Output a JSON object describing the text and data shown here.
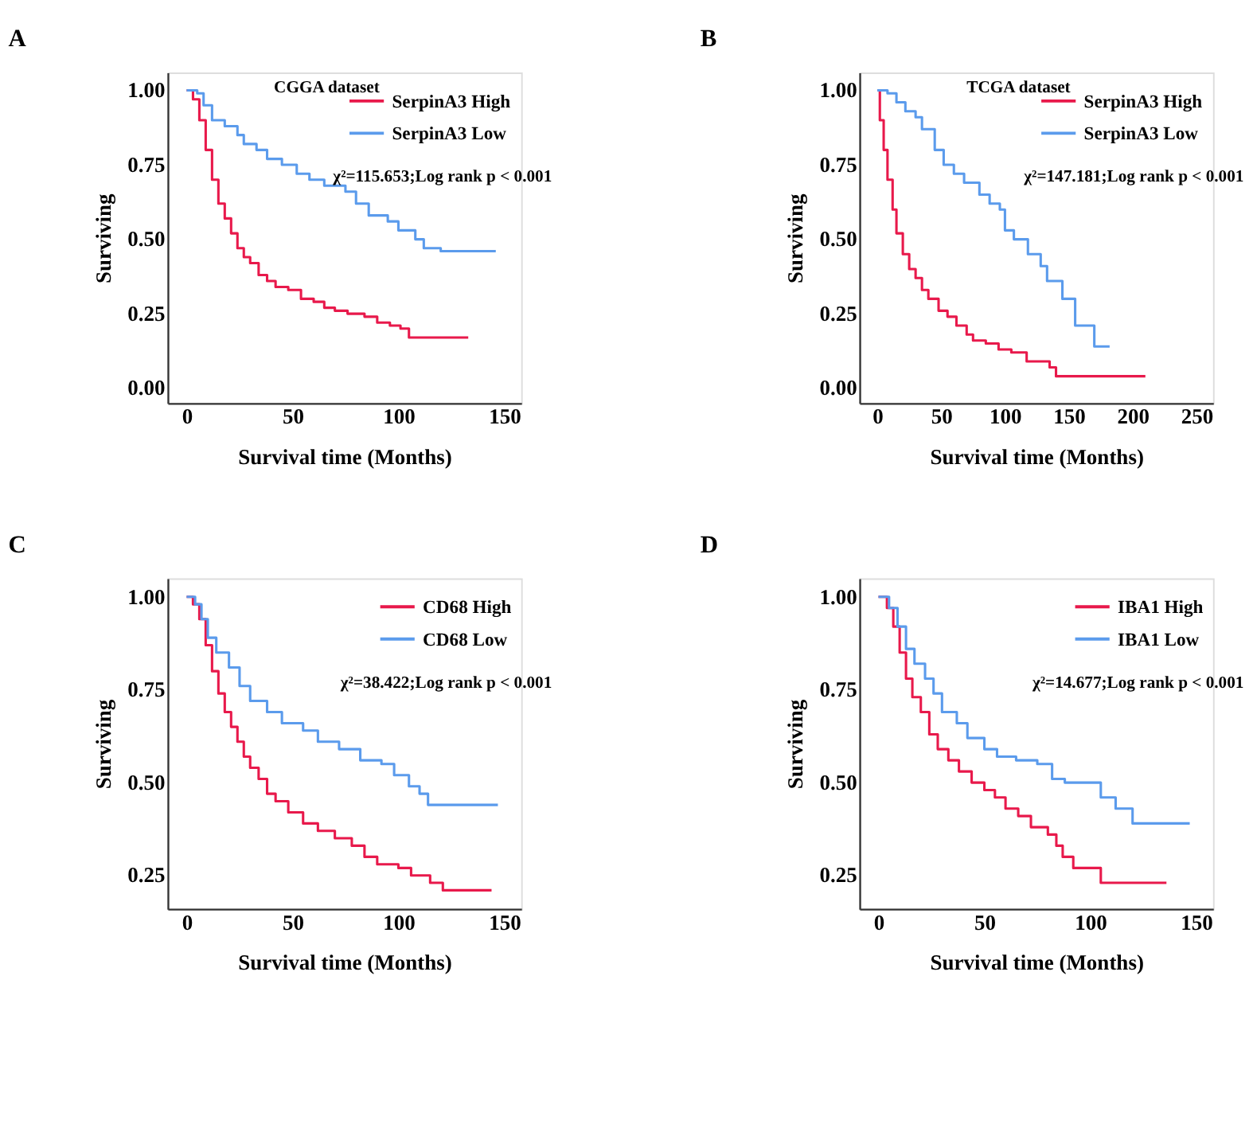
{
  "chart_data": [
    {
      "type": "step",
      "title": "A",
      "subtitle": "CGGA dataset",
      "xlabel": "Survival time (Months)",
      "ylabel": "Surviving",
      "annotations": [
        "χ²=115.653;Log rank p < 0.001"
      ],
      "legend": "top right",
      "xlim": [
        -9,
        158
      ],
      "ylim": [
        -0.05,
        1.06
      ],
      "xticks": [
        0,
        50,
        100,
        150
      ],
      "yticks": [
        {
          "value": 0,
          "label": "0.00"
        },
        {
          "value": 0.25,
          "label": "0.25"
        },
        {
          "value": 0.5,
          "label": "0.50"
        },
        {
          "value": 0.75,
          "label": "0.75"
        },
        {
          "value": 1,
          "label": "1.00"
        }
      ],
      "series": [
        {
          "name": "SerpinA3 High",
          "color": "#e8194b",
          "x": [
            0,
            3,
            6,
            9,
            12,
            15,
            18,
            21,
            24,
            27,
            30,
            34,
            38,
            42,
            48,
            54,
            60,
            65,
            70,
            76,
            84,
            90,
            96,
            101,
            105,
            133
          ],
          "values": [
            1.0,
            0.97,
            0.9,
            0.8,
            0.7,
            0.62,
            0.57,
            0.52,
            0.47,
            0.44,
            0.42,
            0.38,
            0.36,
            0.34,
            0.33,
            0.3,
            0.29,
            0.27,
            0.26,
            0.25,
            0.24,
            0.22,
            0.21,
            0.2,
            0.17,
            0.17
          ]
        },
        {
          "name": "SerpinA3 Low",
          "color": "#5b9bec",
          "x": [
            0,
            5,
            8,
            12,
            18,
            24,
            27,
            33,
            38,
            45,
            52,
            58,
            65,
            75,
            80,
            86,
            95,
            100,
            108,
            112,
            120,
            146
          ],
          "values": [
            1.0,
            0.99,
            0.95,
            0.9,
            0.88,
            0.85,
            0.82,
            0.8,
            0.77,
            0.75,
            0.72,
            0.7,
            0.68,
            0.66,
            0.62,
            0.58,
            0.56,
            0.53,
            0.5,
            0.47,
            0.46,
            0.46
          ]
        }
      ]
    },
    {
      "type": "step",
      "title": "B",
      "subtitle": "TCGA dataset",
      "xlabel": "Survival time (Months)",
      "ylabel": "Surviving",
      "annotations": [
        "χ²=147.181;Log rank p < 0.001"
      ],
      "legend": "top right",
      "xlim": [
        -14,
        263
      ],
      "ylim": [
        -0.05,
        1.06
      ],
      "xticks": [
        0,
        50,
        100,
        150,
        200,
        250
      ],
      "yticks": [
        {
          "value": 0,
          "label": "0.00"
        },
        {
          "value": 0.25,
          "label": "0.25"
        },
        {
          "value": 0.5,
          "label": "0.50"
        },
        {
          "value": 0.75,
          "label": "0.75"
        },
        {
          "value": 1,
          "label": "1.00"
        }
      ],
      "series": [
        {
          "name": "SerpinA3 High",
          "color": "#e8194b",
          "x": [
            0,
            2,
            5,
            8,
            12,
            15,
            20,
            25,
            30,
            35,
            40,
            48,
            55,
            62,
            70,
            75,
            85,
            95,
            105,
            117,
            135,
            140,
            210
          ],
          "values": [
            1.0,
            0.9,
            0.8,
            0.7,
            0.6,
            0.52,
            0.45,
            0.4,
            0.37,
            0.33,
            0.3,
            0.26,
            0.24,
            0.21,
            0.18,
            0.16,
            0.15,
            0.13,
            0.12,
            0.09,
            0.07,
            0.04,
            0.04
          ]
        },
        {
          "name": "SerpinA3 Low",
          "color": "#5b9bec",
          "x": [
            0,
            8,
            15,
            22,
            30,
            35,
            45,
            52,
            60,
            68,
            80,
            88,
            96,
            100,
            107,
            118,
            128,
            133,
            145,
            155,
            170,
            182
          ],
          "values": [
            1.0,
            0.99,
            0.96,
            0.93,
            0.91,
            0.87,
            0.8,
            0.75,
            0.72,
            0.69,
            0.65,
            0.62,
            0.6,
            0.53,
            0.5,
            0.45,
            0.41,
            0.36,
            0.3,
            0.21,
            0.14,
            0.14
          ]
        }
      ]
    },
    {
      "type": "step",
      "title": "C",
      "xlabel": "Survival time (Months)",
      "ylabel": "Surviving",
      "annotations": [
        "χ²=38.422;Log rank p < 0.001"
      ],
      "legend": "top right",
      "xlim": [
        -9,
        158
      ],
      "ylim": [
        0.16,
        1.05
      ],
      "xticks": [
        0,
        50,
        100,
        150
      ],
      "yticks": [
        {
          "value": 0.25,
          "label": "0.25"
        },
        {
          "value": 0.5,
          "label": "0.50"
        },
        {
          "value": 0.75,
          "label": "0.75"
        },
        {
          "value": 1,
          "label": "1.00"
        }
      ],
      "series": [
        {
          "name": "CD68 High",
          "color": "#e8194b",
          "x": [
            0,
            3,
            6,
            9,
            12,
            15,
            18,
            21,
            24,
            27,
            30,
            34,
            38,
            42,
            48,
            55,
            62,
            70,
            78,
            84,
            90,
            100,
            106,
            115,
            121,
            144
          ],
          "values": [
            1.0,
            0.98,
            0.94,
            0.87,
            0.8,
            0.74,
            0.69,
            0.65,
            0.61,
            0.57,
            0.54,
            0.51,
            0.47,
            0.45,
            0.42,
            0.39,
            0.37,
            0.35,
            0.33,
            0.3,
            0.28,
            0.27,
            0.25,
            0.23,
            0.21,
            0.21
          ]
        },
        {
          "name": "CD68 Low",
          "color": "#5b9bec",
          "x": [
            0,
            4,
            7,
            10,
            14,
            20,
            25,
            30,
            38,
            45,
            55,
            62,
            72,
            82,
            92,
            98,
            105,
            110,
            114,
            147
          ],
          "values": [
            1.0,
            0.98,
            0.94,
            0.89,
            0.85,
            0.81,
            0.76,
            0.72,
            0.69,
            0.66,
            0.64,
            0.61,
            0.59,
            0.56,
            0.55,
            0.52,
            0.49,
            0.47,
            0.44,
            0.44
          ]
        }
      ]
    },
    {
      "type": "step",
      "title": "D",
      "xlabel": "Survival time (Months)",
      "ylabel": "Surviving",
      "annotations": [
        "χ²=14.677;Log rank p < 0.001"
      ],
      "legend": "top right",
      "xlim": [
        -9,
        158
      ],
      "ylim": [
        0.16,
        1.05
      ],
      "xticks": [
        0,
        50,
        100,
        150
      ],
      "yticks": [
        {
          "value": 0.25,
          "label": "0.25"
        },
        {
          "value": 0.5,
          "label": "0.50"
        },
        {
          "value": 0.75,
          "label": "0.75"
        },
        {
          "value": 1,
          "label": "1.00"
        }
      ],
      "series": [
        {
          "name": "IBA1 High",
          "color": "#e8194b",
          "x": [
            0,
            4,
            7,
            10,
            13,
            16,
            20,
            24,
            28,
            33,
            38,
            44,
            50,
            55,
            60,
            66,
            72,
            80,
            84,
            87,
            92,
            105,
            136
          ],
          "values": [
            1.0,
            0.97,
            0.92,
            0.85,
            0.78,
            0.73,
            0.69,
            0.63,
            0.59,
            0.56,
            0.53,
            0.5,
            0.48,
            0.46,
            0.43,
            0.41,
            0.38,
            0.36,
            0.33,
            0.3,
            0.27,
            0.23,
            0.23
          ]
        },
        {
          "name": "IBA1 Low",
          "color": "#5b9bec",
          "x": [
            0,
            5,
            9,
            13,
            17,
            22,
            26,
            30,
            37,
            42,
            50,
            56,
            65,
            75,
            82,
            88,
            100,
            105,
            112,
            120,
            147
          ],
          "values": [
            1.0,
            0.97,
            0.92,
            0.86,
            0.82,
            0.78,
            0.74,
            0.69,
            0.66,
            0.62,
            0.59,
            0.57,
            0.56,
            0.55,
            0.51,
            0.5,
            0.5,
            0.46,
            0.43,
            0.39,
            0.39
          ]
        }
      ]
    }
  ]
}
